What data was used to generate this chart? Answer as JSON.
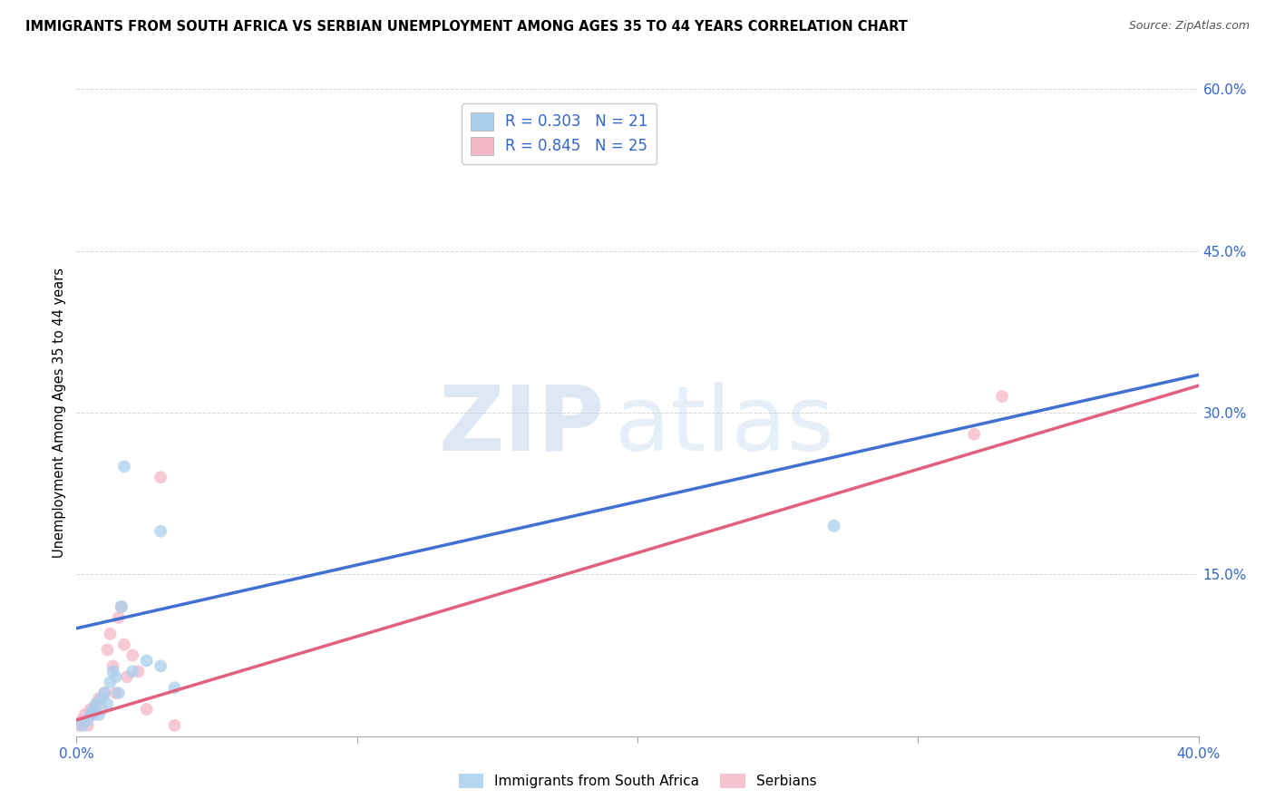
{
  "title": "IMMIGRANTS FROM SOUTH AFRICA VS SERBIAN UNEMPLOYMENT AMONG AGES 35 TO 44 YEARS CORRELATION CHART",
  "source": "Source: ZipAtlas.com",
  "xlabel": "",
  "ylabel": "Unemployment Among Ages 35 to 44 years",
  "xlim": [
    0,
    0.4
  ],
  "ylim": [
    0,
    0.6
  ],
  "xticks": [
    0.0,
    0.1,
    0.2,
    0.3,
    0.4
  ],
  "yticks": [
    0.0,
    0.15,
    0.3,
    0.45,
    0.6
  ],
  "xtick_labels": [
    "0.0%",
    "",
    "",
    "",
    "40.0%"
  ],
  "ytick_labels": [
    "",
    "15.0%",
    "30.0%",
    "45.0%",
    "60.0%"
  ],
  "blue_R": 0.303,
  "blue_N": 21,
  "pink_R": 0.845,
  "pink_N": 25,
  "blue_label": "Immigrants from South Africa",
  "pink_label": "Serbians",
  "blue_color": "#aacfee",
  "pink_color": "#f4b8c8",
  "blue_line_color": "#4070d0",
  "pink_line_color": "#e06080",
  "watermark_zip": "ZIP",
  "watermark_atlas": "atlas",
  "blue_scatter_x": [
    0.002,
    0.004,
    0.005,
    0.006,
    0.007,
    0.008,
    0.009,
    0.01,
    0.011,
    0.012,
    0.013,
    0.014,
    0.015,
    0.016,
    0.017,
    0.02,
    0.025,
    0.03,
    0.035,
    0.03,
    0.27
  ],
  "blue_scatter_y": [
    0.01,
    0.015,
    0.02,
    0.025,
    0.03,
    0.02,
    0.035,
    0.04,
    0.03,
    0.05,
    0.06,
    0.055,
    0.04,
    0.12,
    0.25,
    0.06,
    0.07,
    0.065,
    0.045,
    0.19,
    0.195
  ],
  "pink_scatter_x": [
    0.001,
    0.002,
    0.003,
    0.004,
    0.005,
    0.006,
    0.007,
    0.008,
    0.009,
    0.01,
    0.011,
    0.012,
    0.013,
    0.014,
    0.015,
    0.016,
    0.017,
    0.018,
    0.02,
    0.022,
    0.025,
    0.03,
    0.035,
    0.32,
    0.33
  ],
  "pink_scatter_y": [
    0.01,
    0.015,
    0.02,
    0.01,
    0.025,
    0.02,
    0.03,
    0.035,
    0.025,
    0.04,
    0.08,
    0.095,
    0.065,
    0.04,
    0.11,
    0.12,
    0.085,
    0.055,
    0.075,
    0.06,
    0.025,
    0.24,
    0.01,
    0.28,
    0.315
  ],
  "blue_trend_x": [
    0.0,
    0.4
  ],
  "blue_trend_y": [
    0.1,
    0.335
  ],
  "pink_trend_x": [
    0.0,
    0.4
  ],
  "pink_trend_y": [
    0.015,
    0.325
  ]
}
